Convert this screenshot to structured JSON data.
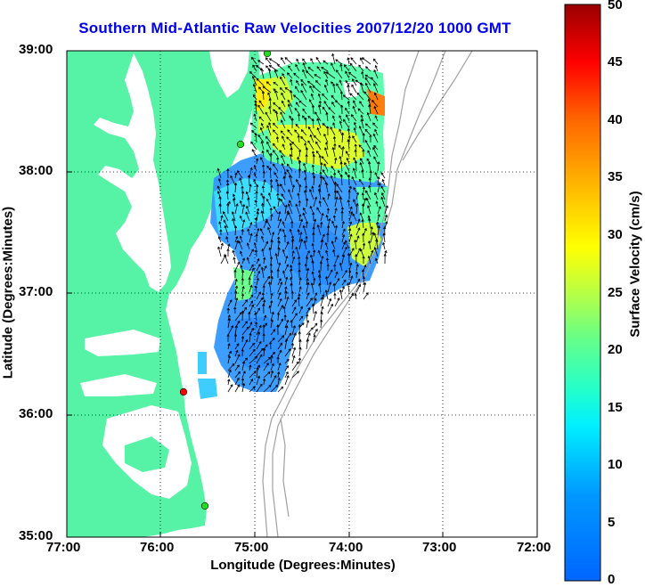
{
  "title": "Southern Mid-Atlantic Raw Velocities 2007/12/20 1000 GMT",
  "xlabel": "Longitude (Degrees:Minutes)",
  "ylabel": "Latitude (Degrees:Minutes)",
  "x_ticks": [
    "77:00",
    "76:00",
    "75:00",
    "74:00",
    "73:00",
    "72:00"
  ],
  "y_ticks": [
    "39:00",
    "38:00",
    "37:00",
    "36:00",
    "35:00"
  ],
  "colorbar": {
    "label": "Surface Velocity (cm/s)",
    "ticks": [
      "50",
      "45",
      "40",
      "35",
      "30",
      "25",
      "20",
      "15",
      "10",
      "5",
      "0"
    ],
    "range": [
      0,
      50
    ]
  },
  "colors": {
    "land": "#56f2a6",
    "title": "#0000ee",
    "bathymetry": "#a0a0a0",
    "grid": "#000000",
    "station_green": "#22dd22",
    "station_red": "#ff0000"
  }
}
